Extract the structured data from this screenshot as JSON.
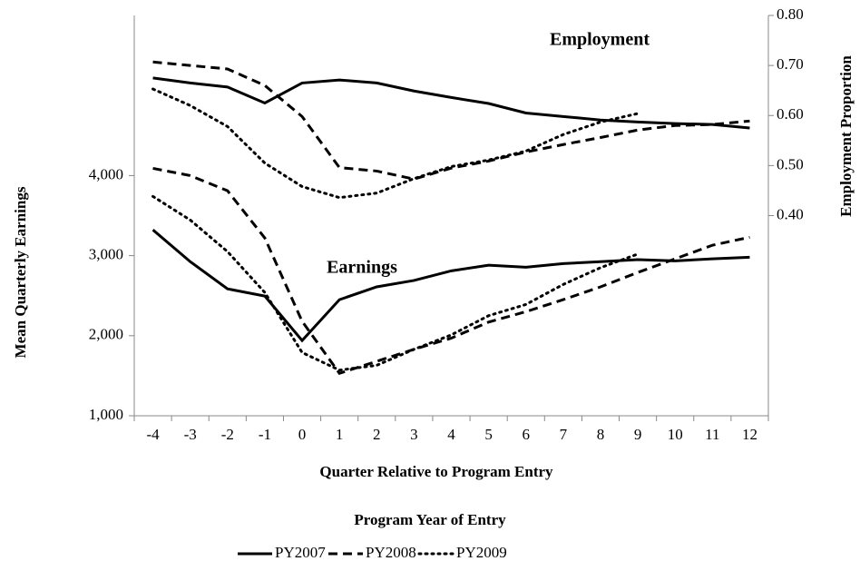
{
  "chart_data": {
    "type": "line",
    "x_label": "Quarter  Relative to Program  Entry",
    "y_label": "Mean Quarterly  Earnings",
    "y2_label": "Employment  Proportion",
    "legend_title": "Program  Year of Entry",
    "annotations": [
      "Employment",
      "Earnings"
    ],
    "categories": [
      "-4",
      "-3",
      "-2",
      "-1",
      "0",
      "1",
      "2",
      "3",
      "4",
      "5",
      "6",
      "7",
      "8",
      "9",
      "10",
      "11",
      "12"
    ],
    "ylim": [
      1000,
      6000
    ],
    "yticks": [
      {
        "value": 1000,
        "label": "1,000"
      },
      {
        "value": 2000,
        "label": "2,000"
      },
      {
        "value": 3000,
        "label": "3,000"
      },
      {
        "value": 4000,
        "label": "4,000"
      }
    ],
    "y2lim": [
      0,
      0.8
    ],
    "y2ticks": [
      {
        "value": 0.4,
        "label": "0.40"
      },
      {
        "value": 0.5,
        "label": "0.50"
      },
      {
        "value": 0.6,
        "label": "0.60"
      },
      {
        "value": 0.7,
        "label": "0.70"
      },
      {
        "value": 0.8,
        "label": "0.80"
      }
    ],
    "series": [
      {
        "name": "PY2007",
        "color": "#000000",
        "dash": "solid",
        "earnings": [
          3322,
          2925,
          2585,
          2495,
          1940,
          2450,
          2610,
          2690,
          2810,
          2880,
          2855,
          2900,
          2925,
          2950,
          2935,
          2960,
          2980
        ],
        "employment": [
          0.675,
          0.665,
          0.657,
          0.625,
          0.665,
          0.671,
          0.665,
          0.649,
          0.636,
          0.624,
          0.605,
          0.598,
          0.591,
          0.587,
          0.584,
          0.582,
          0.575
        ]
      },
      {
        "name": "PY2008",
        "color": "#000000",
        "dash": "dashed",
        "earnings": [
          4090,
          4000,
          3810,
          3220,
          2180,
          1530,
          1680,
          1830,
          1970,
          2170,
          2300,
          2450,
          2610,
          2790,
          2960,
          3130,
          3230
        ],
        "employment": [
          0.707,
          0.7,
          0.693,
          0.66,
          0.598,
          0.496,
          0.489,
          0.473,
          0.495,
          0.509,
          0.527,
          0.542,
          0.556,
          0.571,
          0.58,
          0.582,
          0.589
        ]
      },
      {
        "name": "PY2009",
        "color": "#000000",
        "dash": "dotted",
        "earnings": [
          3740,
          3445,
          3050,
          2540,
          1790,
          1570,
          1630,
          1830,
          2010,
          2250,
          2390,
          2640,
          2850,
          3020,
          null,
          null,
          null
        ],
        "employment": [
          0.653,
          0.62,
          0.578,
          0.505,
          0.458,
          0.436,
          0.445,
          0.474,
          0.498,
          0.511,
          0.529,
          0.562,
          0.587,
          0.604,
          null,
          null,
          null
        ]
      }
    ]
  }
}
